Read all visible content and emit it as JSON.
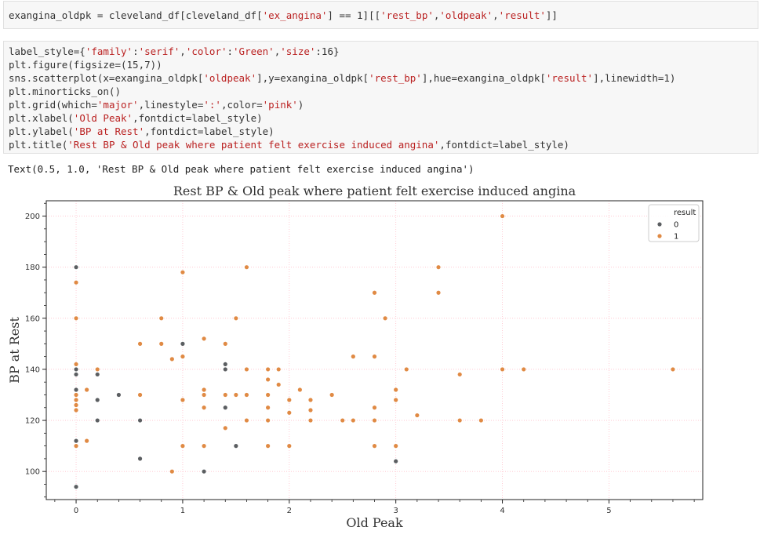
{
  "cells": [
    {
      "lines": [
        [
          [
            "exangina_oldpk = cleveland_df[cleveland_df[",
            ""
          ],
          [
            "'ex_angina'",
            "str"
          ],
          [
            "] == 1][[",
            ""
          ],
          [
            "'rest_bp'",
            "str"
          ],
          [
            ",",
            ""
          ],
          [
            "'oldpeak'",
            "str"
          ],
          [
            ",",
            ""
          ],
          [
            "'result'",
            "str"
          ],
          [
            "]]",
            ""
          ]
        ]
      ]
    },
    {
      "lines": [
        [
          [
            "label_style={",
            ""
          ],
          [
            "'family'",
            "str"
          ],
          [
            ":",
            ""
          ],
          [
            "'serif'",
            "str"
          ],
          [
            ",",
            ""
          ],
          [
            "'color'",
            "str"
          ],
          [
            ":",
            ""
          ],
          [
            "'Green'",
            "str"
          ],
          [
            ",",
            ""
          ],
          [
            "'size'",
            "str"
          ],
          [
            ":16}",
            ""
          ]
        ],
        [
          [
            "plt.figure(figsize=(15,7))",
            ""
          ]
        ],
        [
          [
            "sns.scatterplot(x=exangina_oldpk[",
            ""
          ],
          [
            "'oldpeak'",
            "str"
          ],
          [
            "],y=exangina_oldpk[",
            ""
          ],
          [
            "'rest_bp'",
            "str"
          ],
          [
            "],hue=exangina_oldpk[",
            ""
          ],
          [
            "'result'",
            "str"
          ],
          [
            "],linewidth=1)",
            ""
          ]
        ],
        [
          [
            "plt.minorticks_on()",
            ""
          ]
        ],
        [
          [
            "plt.grid(which=",
            ""
          ],
          [
            "'major'",
            "str"
          ],
          [
            ",linestyle=",
            ""
          ],
          [
            "':'",
            "str"
          ],
          [
            ",color=",
            ""
          ],
          [
            "'pink'",
            "str"
          ],
          [
            ")",
            ""
          ]
        ],
        [
          [
            "plt.xlabel(",
            ""
          ],
          [
            "'Old Peak'",
            "str"
          ],
          [
            ",fontdict=label_style)",
            ""
          ]
        ],
        [
          [
            "plt.ylabel(",
            ""
          ],
          [
            "'BP at Rest'",
            "str"
          ],
          [
            ",fontdict=label_style)",
            ""
          ]
        ],
        [
          [
            "plt.title(",
            ""
          ],
          [
            "'Rest BP & Old peak where patient felt exercise induced angina'",
            "str"
          ],
          [
            ",fontdict=label_style)",
            ""
          ]
        ]
      ]
    }
  ],
  "output_text": "Text(0.5, 1.0, 'Rest BP & Old peak where patient felt exercise induced angina')",
  "chart_data": {
    "type": "scatter",
    "title": "Rest BP & Old peak where patient felt exercise induced angina",
    "xlabel": "Old Peak",
    "ylabel": "BP at Rest",
    "xlim": [
      -0.28,
      5.88
    ],
    "ylim": [
      89,
      206
    ],
    "xticks": [
      0,
      1,
      2,
      3,
      4,
      5
    ],
    "yticks": [
      100,
      120,
      140,
      160,
      180,
      200
    ],
    "grid": true,
    "legend_title": "result",
    "legend_position": "top-right",
    "colors": {
      "0": "#5b5e61",
      "1": "#e08a44",
      "grid": "#ffc0cb"
    },
    "series": [
      {
        "name": "0",
        "points": [
          [
            0,
            94
          ],
          [
            0,
            112
          ],
          [
            0,
            126
          ],
          [
            0,
            132
          ],
          [
            0,
            138
          ],
          [
            0,
            140
          ],
          [
            0,
            180
          ],
          [
            0.2,
            120
          ],
          [
            0.2,
            128
          ],
          [
            0.2,
            138
          ],
          [
            0.4,
            130
          ],
          [
            0.6,
            105
          ],
          [
            0.6,
            120
          ],
          [
            1.0,
            150
          ],
          [
            1.2,
            100
          ],
          [
            1.4,
            125
          ],
          [
            1.4,
            140
          ],
          [
            1.4,
            142
          ],
          [
            1.5,
            110
          ],
          [
            1.8,
            110
          ],
          [
            3.0,
            104
          ]
        ]
      },
      {
        "name": "1",
        "points": [
          [
            0,
            110
          ],
          [
            0,
            124
          ],
          [
            0,
            126
          ],
          [
            0,
            128
          ],
          [
            0,
            130
          ],
          [
            0,
            142
          ],
          [
            0,
            160
          ],
          [
            0,
            174
          ],
          [
            0.1,
            112
          ],
          [
            0.1,
            132
          ],
          [
            0.2,
            140
          ],
          [
            0.6,
            130
          ],
          [
            0.6,
            150
          ],
          [
            0.8,
            150
          ],
          [
            0.8,
            160
          ],
          [
            0.9,
            100
          ],
          [
            0.9,
            144
          ],
          [
            1.0,
            110
          ],
          [
            1.0,
            128
          ],
          [
            1.0,
            145
          ],
          [
            1.0,
            178
          ],
          [
            1.2,
            110
          ],
          [
            1.2,
            125
          ],
          [
            1.2,
            130
          ],
          [
            1.2,
            132
          ],
          [
            1.2,
            152
          ],
          [
            1.4,
            117
          ],
          [
            1.4,
            130
          ],
          [
            1.4,
            150
          ],
          [
            1.5,
            130
          ],
          [
            1.5,
            160
          ],
          [
            1.6,
            120
          ],
          [
            1.6,
            130
          ],
          [
            1.6,
            140
          ],
          [
            1.6,
            180
          ],
          [
            1.8,
            110
          ],
          [
            1.8,
            120
          ],
          [
            1.8,
            125
          ],
          [
            1.8,
            130
          ],
          [
            1.8,
            136
          ],
          [
            1.8,
            140
          ],
          [
            1.9,
            134
          ],
          [
            1.9,
            140
          ],
          [
            2.0,
            110
          ],
          [
            2.0,
            123
          ],
          [
            2.0,
            128
          ],
          [
            2.1,
            132
          ],
          [
            2.2,
            120
          ],
          [
            2.2,
            124
          ],
          [
            2.2,
            128
          ],
          [
            2.4,
            130
          ],
          [
            2.5,
            120
          ],
          [
            2.6,
            120
          ],
          [
            2.6,
            145
          ],
          [
            2.8,
            110
          ],
          [
            2.8,
            120
          ],
          [
            2.8,
            125
          ],
          [
            2.8,
            145
          ],
          [
            2.8,
            170
          ],
          [
            2.9,
            160
          ],
          [
            3.0,
            110
          ],
          [
            3.0,
            128
          ],
          [
            3.0,
            132
          ],
          [
            3.1,
            140
          ],
          [
            3.2,
            122
          ],
          [
            3.4,
            170
          ],
          [
            3.4,
            180
          ],
          [
            3.6,
            120
          ],
          [
            3.6,
            138
          ],
          [
            3.8,
            120
          ],
          [
            4.0,
            140
          ],
          [
            4.0,
            200
          ],
          [
            4.2,
            140
          ],
          [
            5.6,
            140
          ]
        ]
      }
    ]
  }
}
